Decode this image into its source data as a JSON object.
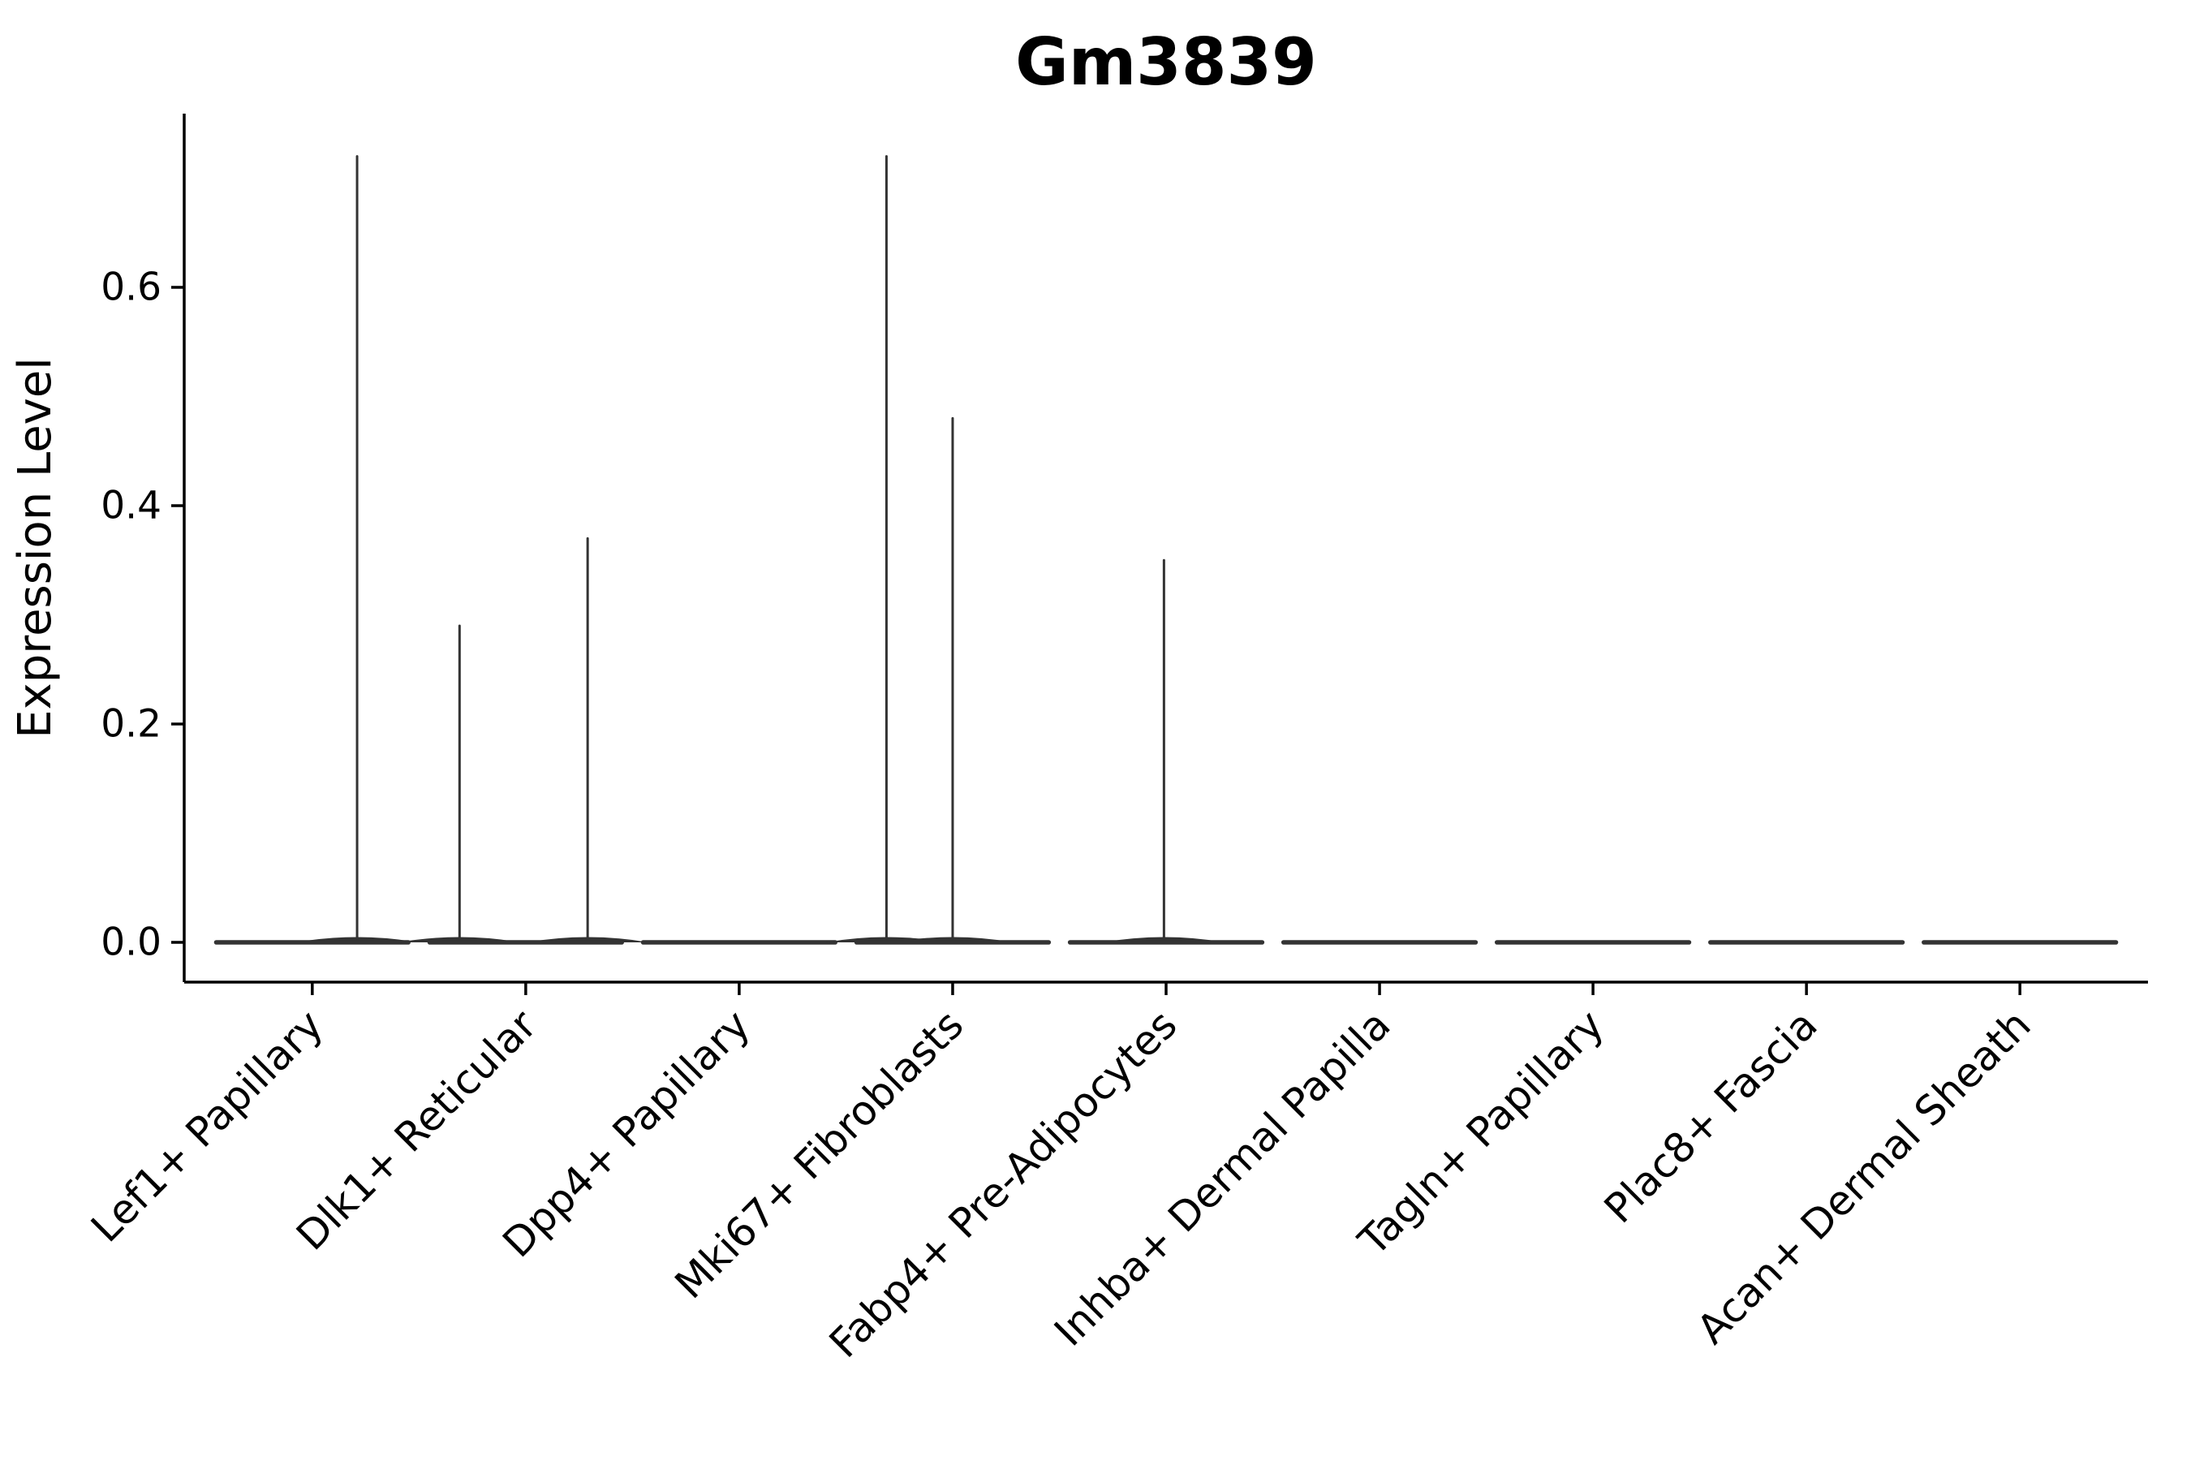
{
  "title": "Gm3839",
  "axes": {
    "ylabel": "Expression Level",
    "ytick_labels": [
      "0.0",
      "0.2",
      "0.4",
      "0.6"
    ]
  },
  "colors": {
    "violin": "#333333",
    "axis": "#000000",
    "text": "#000000",
    "background": "#ffffff"
  },
  "chart_data": {
    "type": "violin",
    "title": "Gm3839",
    "xlabel": "",
    "ylabel": "Expression Level",
    "ylim": [
      -0.036,
      0.76
    ],
    "yticks": [
      0.0,
      0.2,
      0.4,
      0.6
    ],
    "grid": false,
    "legend_position": "none",
    "categories": [
      "Lef1+ Papillary",
      "Dlk1+ Reticular",
      "Dpp4+ Papillary",
      "Mki67+ Fibroblasts",
      "Fabp4+ Pre-Adipocytes",
      "Inhba+ Dermal Papilla",
      "Tagln+ Papillary",
      "Plac8+ Fascia",
      "Acan+ Dermal Sheath"
    ],
    "violin_rel_width": 0.9,
    "series": [
      {
        "category": "Lef1+ Papillary",
        "base": 0.0,
        "max_expression": 0.72,
        "spikes": [
          {
            "offset": 0.21,
            "value": 0.72
          }
        ]
      },
      {
        "category": "Dlk1+ Reticular",
        "base": 0.0,
        "max_expression": 0.37,
        "spikes": [
          {
            "offset": -0.31,
            "value": 0.29
          },
          {
            "offset": 0.29,
            "value": 0.37
          }
        ]
      },
      {
        "category": "Dpp4+ Papillary",
        "base": 0.0,
        "max_expression": 0.0,
        "spikes": []
      },
      {
        "category": "Mki67+ Fibroblasts",
        "base": 0.0,
        "max_expression": 0.72,
        "spikes": [
          {
            "offset": -0.31,
            "value": 0.72
          },
          {
            "offset": 0.0,
            "value": 0.48
          }
        ]
      },
      {
        "category": "Fabp4+ Pre-Adipocytes",
        "base": 0.0,
        "max_expression": 0.35,
        "spikes": [
          {
            "offset": -0.01,
            "value": 0.35
          }
        ]
      },
      {
        "category": "Inhba+ Dermal Papilla",
        "base": 0.0,
        "max_expression": 0.0,
        "spikes": []
      },
      {
        "category": "Tagln+ Papillary",
        "base": 0.0,
        "max_expression": 0.0,
        "spikes": []
      },
      {
        "category": "Plac8+ Fascia",
        "base": 0.0,
        "max_expression": 0.0,
        "spikes": []
      },
      {
        "category": "Acan+ Dermal Sheath",
        "base": 0.0,
        "max_expression": 0.0,
        "spikes": []
      }
    ]
  }
}
